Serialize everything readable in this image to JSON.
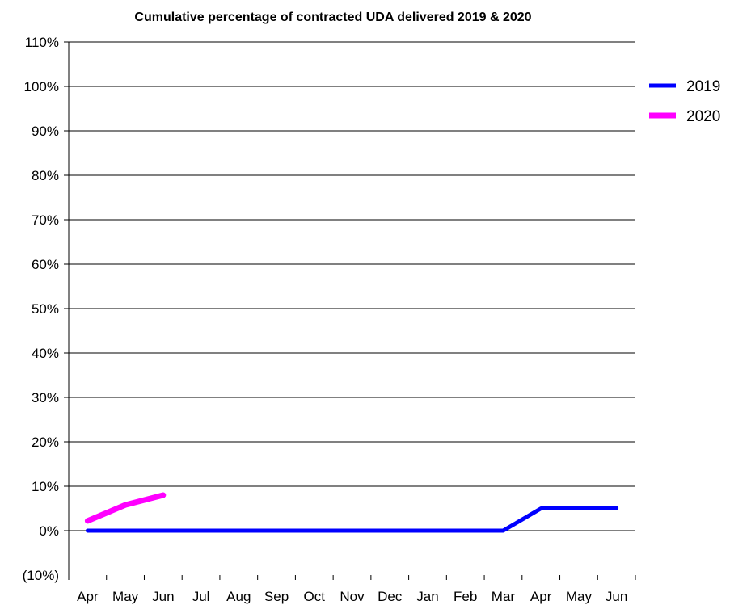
{
  "chart_data": {
    "type": "line",
    "title": "Cumulative percentage of contracted UDA delivered 2019 & 2020",
    "xlabel": "",
    "ylabel": "",
    "categories": [
      "Apr",
      "May",
      "Jun",
      "Jul",
      "Aug",
      "Sep",
      "Oct",
      "Nov",
      "Dec",
      "Jan",
      "Feb",
      "Mar",
      "Apr",
      "May",
      "Jun"
    ],
    "y_ticks": [
      "(10%)",
      "0%",
      "10%",
      "20%",
      "30%",
      "40%",
      "50%",
      "60%",
      "70%",
      "80%",
      "90%",
      "100%",
      "110%"
    ],
    "ylim": [
      -10,
      110
    ],
    "grid": true,
    "legend_position": "right",
    "series": [
      {
        "name": "2019",
        "color": "#0000ff",
        "values": [
          0,
          0,
          0,
          0,
          0,
          0,
          0,
          0,
          0,
          0,
          0,
          0,
          5,
          5.1,
          5.1
        ]
      },
      {
        "name": "2020",
        "color": "#ff00ff",
        "values": [
          2.2,
          5.8,
          8.0,
          null,
          null,
          null,
          null,
          null,
          null,
          null,
          null,
          null,
          null,
          null,
          null
        ]
      }
    ],
    "negative_tick_color": "#ff0000"
  }
}
